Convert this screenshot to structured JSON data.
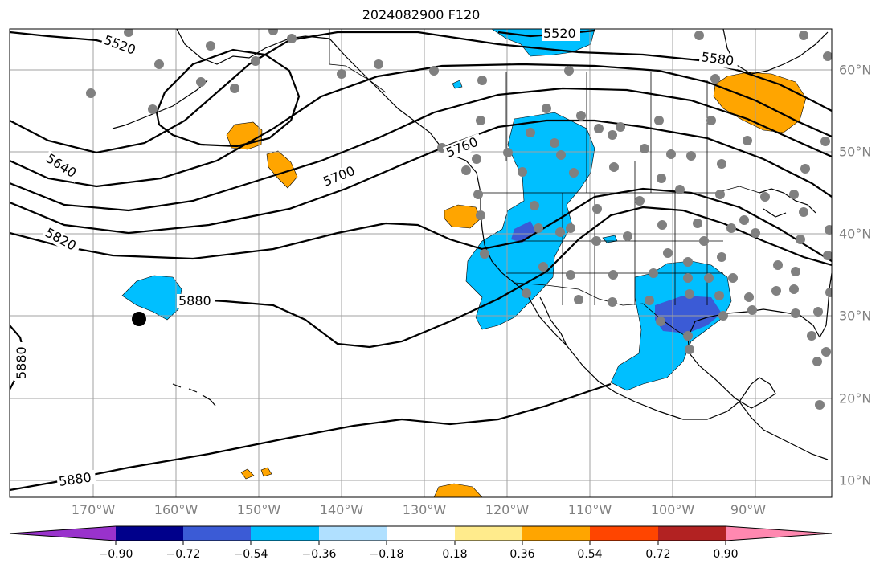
{
  "title": "2024082900 F120",
  "axes": {
    "lon_labels": [
      "170°W",
      "160°W",
      "150°W",
      "140°W",
      "130°W",
      "120°W",
      "110°W",
      "100°W",
      "90°W"
    ],
    "lat_labels": [
      "60°N",
      "50°N",
      "40°N",
      "30°N",
      "20°N",
      "10°N"
    ]
  },
  "contours": {
    "field": "500 hPa geopotential height",
    "levels": [
      5520,
      5580,
      5640,
      5700,
      5760,
      5820,
      5880
    ],
    "labels": [
      "5520",
      "5520",
      "5580",
      "5640",
      "5700",
      "5760",
      "5820",
      "5880",
      "5880",
      "5880"
    ],
    "color": "#000000"
  },
  "colorbar": {
    "tick_labels": [
      "−0.90",
      "−0.72",
      "−0.54",
      "−0.36",
      "−0.18",
      "0.18",
      "0.36",
      "0.54",
      "0.72",
      "0.90"
    ],
    "colors": [
      "#9932cc",
      "#00008b",
      "#3b5bd6",
      "#00bfff",
      "#b0e0ff",
      "#ffffff",
      "#ffeb8c",
      "#ffa500",
      "#ff4500",
      "#b22222",
      "#ff88b0"
    ],
    "extend": "both"
  },
  "markers": {
    "station_color": "#808080",
    "highlight_color": "#000000"
  },
  "chart_data": {
    "type": "map",
    "projection": "PlateCarree",
    "extent_lon": [
      -179,
      -80
    ],
    "extent_lat": [
      8,
      64
    ],
    "grid": true
  }
}
